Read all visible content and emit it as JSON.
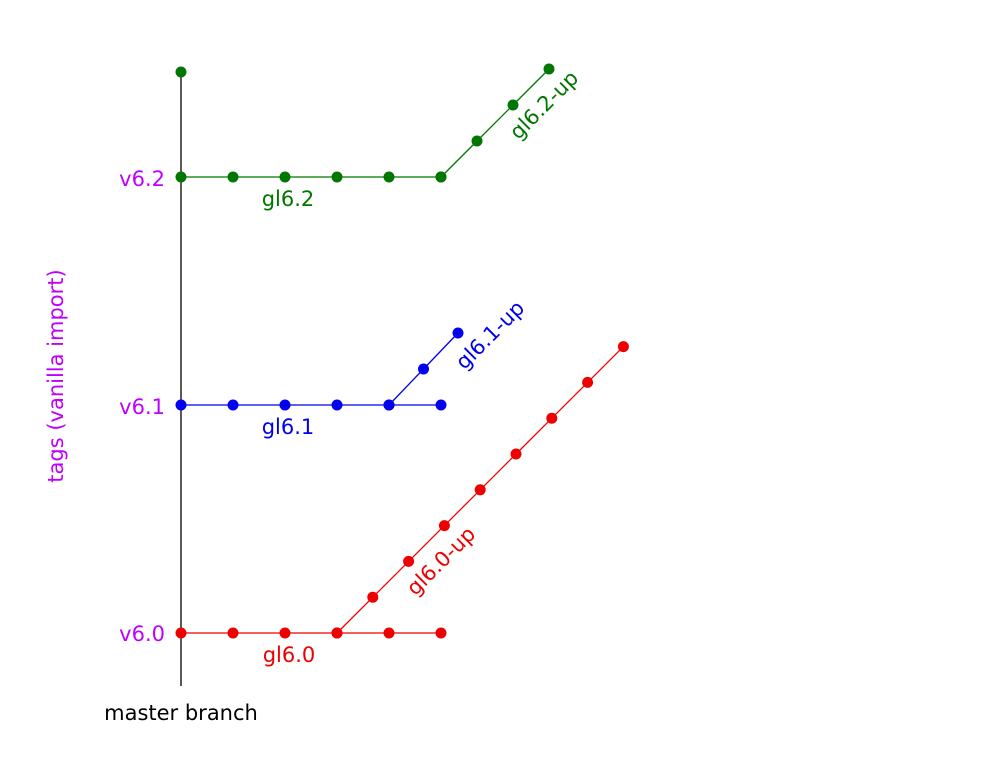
{
  "colors": {
    "master": "#000000",
    "tag": "#bf00ff",
    "gl60": "#ee0000",
    "gl61": "#0000ee",
    "gl62": "#007700"
  },
  "master": {
    "label": "master branch",
    "tags_axis_label": "tags (vanilla import)",
    "tags": [
      {
        "label": "v6.0",
        "branch": "gl60"
      },
      {
        "label": "v6.1",
        "branch": "gl61"
      },
      {
        "label": "v6.2",
        "branch": "gl62"
      }
    ]
  },
  "branches": {
    "gl60": {
      "label": "gl6.0",
      "commits": 6
    },
    "gl60up": {
      "label": "gl6.0-up",
      "commits": 8
    },
    "gl61": {
      "label": "gl6.1",
      "commits": 6
    },
    "gl61up": {
      "label": "gl6.1-up",
      "commits": 2
    },
    "gl62": {
      "label": "gl6.2",
      "commits": 6
    },
    "gl62up": {
      "label": "gl6.2-up",
      "commits": 3
    }
  }
}
